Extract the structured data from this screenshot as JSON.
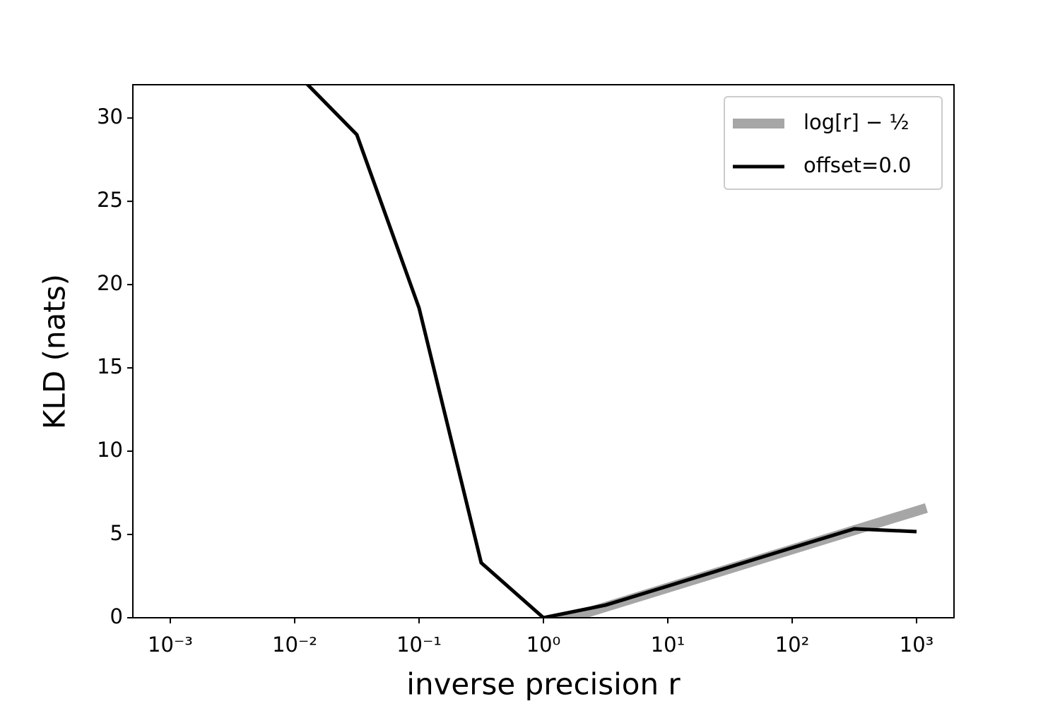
{
  "chart_data": {
    "type": "line",
    "xlabel": "inverse precision r",
    "ylabel": "KLD (nats)",
    "xscale": "log",
    "xlim": [
      0.0005,
      2000
    ],
    "ylim": [
      0,
      32
    ],
    "xticks": [
      {
        "value": 0.001,
        "label": "10⁻³"
      },
      {
        "value": 0.01,
        "label": "10⁻²"
      },
      {
        "value": 0.1,
        "label": "10⁻¹"
      },
      {
        "value": 1,
        "label": "10⁰"
      },
      {
        "value": 10,
        "label": "10¹"
      },
      {
        "value": 100,
        "label": "10²"
      },
      {
        "value": 1000,
        "label": "10³"
      }
    ],
    "yticks": [
      0,
      5,
      10,
      15,
      20,
      25,
      30
    ],
    "grid": false,
    "legend": "upper right",
    "series": [
      {
        "name": "log[r] − ½",
        "color": "#a6a6a6",
        "linewidth": 14,
        "x": [
          1,
          1200
        ],
        "values": [
          -0.5,
          6.59
        ]
      },
      {
        "name": "offset=0.0",
        "color": "#000000",
        "linewidth": 5,
        "x": [
          0.01,
          0.0316,
          0.1,
          0.316,
          1,
          3.16,
          10,
          31.6,
          100,
          316,
          1000
        ],
        "values": [
          32.8,
          29.0,
          18.6,
          3.3,
          0,
          0.76,
          1.9,
          3.05,
          4.2,
          5.34,
          5.17
        ]
      }
    ]
  }
}
